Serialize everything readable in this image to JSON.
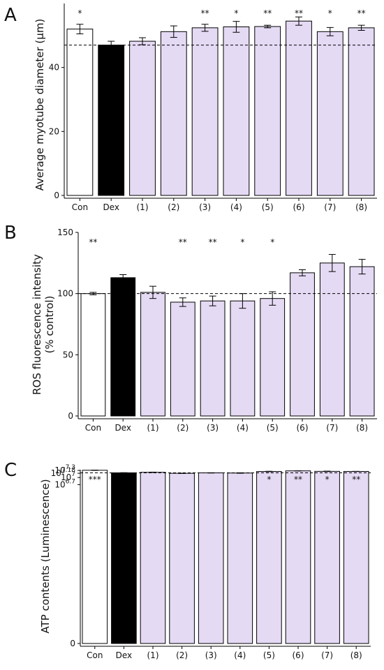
{
  "colors": {
    "control": "#ffffff",
    "dex": "#000000",
    "treatment": "#e5daf4",
    "stroke": "#000000"
  },
  "chart_data": [
    {
      "panel": "A",
      "type": "bar",
      "ylabel": "Average myotube diameter (µm)",
      "categories": [
        "Con",
        "Dex",
        "(1)",
        "(2)",
        "(3)",
        "(4)",
        "(5)",
        "(6)",
        "(7)",
        "(8)"
      ],
      "values": [
        52.0,
        47.0,
        48.2,
        51.2,
        52.4,
        52.7,
        52.8,
        54.5,
        51.2,
        52.4
      ],
      "errors": [
        1.5,
        1.2,
        1.1,
        1.8,
        1.1,
        1.7,
        0.4,
        1.3,
        1.3,
        0.8
      ],
      "significance": [
        "*",
        "",
        "",
        "",
        "**",
        "*",
        "**",
        "**",
        "*",
        "**"
      ],
      "reference_line": 47.0,
      "ylim": [
        0,
        60
      ],
      "yticks": [
        {
          "value": 0,
          "label": "0"
        },
        {
          "value": 20,
          "label": "20"
        },
        {
          "value": 40,
          "label": "40"
        }
      ],
      "grid": false
    },
    {
      "panel": "B",
      "type": "bar",
      "ylabel": "ROS fluorescence intensity\n(% control)",
      "categories": [
        "Con",
        "Dex",
        "(1)",
        "(2)",
        "(3)",
        "(4)",
        "(5)",
        "(6)",
        "(7)",
        "(8)"
      ],
      "values": [
        100,
        113,
        101,
        93,
        94,
        94,
        96,
        117,
        125,
        122
      ],
      "errors": [
        1,
        2.5,
        5,
        3.5,
        4,
        6,
        5.5,
        2.5,
        7,
        6
      ],
      "significance": [
        "**",
        "",
        "",
        "**",
        "**",
        "*",
        "*",
        "",
        "",
        ""
      ],
      "reference_line": 100,
      "ylim": [
        0,
        150
      ],
      "yticks": [
        {
          "value": 0,
          "label": "0"
        },
        {
          "value": 50,
          "label": "50"
        },
        {
          "value": 100,
          "label": "100"
        },
        {
          "value": 150,
          "label": "150"
        }
      ],
      "grid": false
    },
    {
      "panel": "C",
      "type": "bar",
      "ylabel": "ATP contents (Luminescence)",
      "categories": [
        "Con",
        "Dex",
        "(1)",
        "(2)",
        "(3)",
        "(4)",
        "(5)",
        "(6)",
        "(7)",
        "(8)"
      ],
      "values": [
        7.306,
        7.199,
        7.22,
        7.178,
        7.196,
        7.19,
        7.255,
        7.281,
        7.26,
        7.257
      ],
      "errors": [
        0.006,
        0.006,
        0.008,
        0.006,
        0.006,
        0.01,
        0.009,
        0.003,
        0.009,
        0.004
      ],
      "significance": [
        "***",
        "",
        "",
        "",
        "",
        "",
        "*",
        "**",
        "*",
        "**"
      ],
      "reference_line": 7.199,
      "scale": "log",
      "ylim": [
        0,
        7.33
      ],
      "yticks": [
        {
          "value": 0,
          "base": "0",
          "exp": ""
        },
        {
          "value": 6.7,
          "base": "10",
          "exp": "6.7"
        },
        {
          "value": 7,
          "base": "10",
          "exp": "7"
        },
        {
          "value": 7.18,
          "base": "10",
          "exp": "7.18"
        },
        {
          "value": 7.3,
          "base": "10",
          "exp": "7.3"
        }
      ],
      "grid": false
    }
  ]
}
